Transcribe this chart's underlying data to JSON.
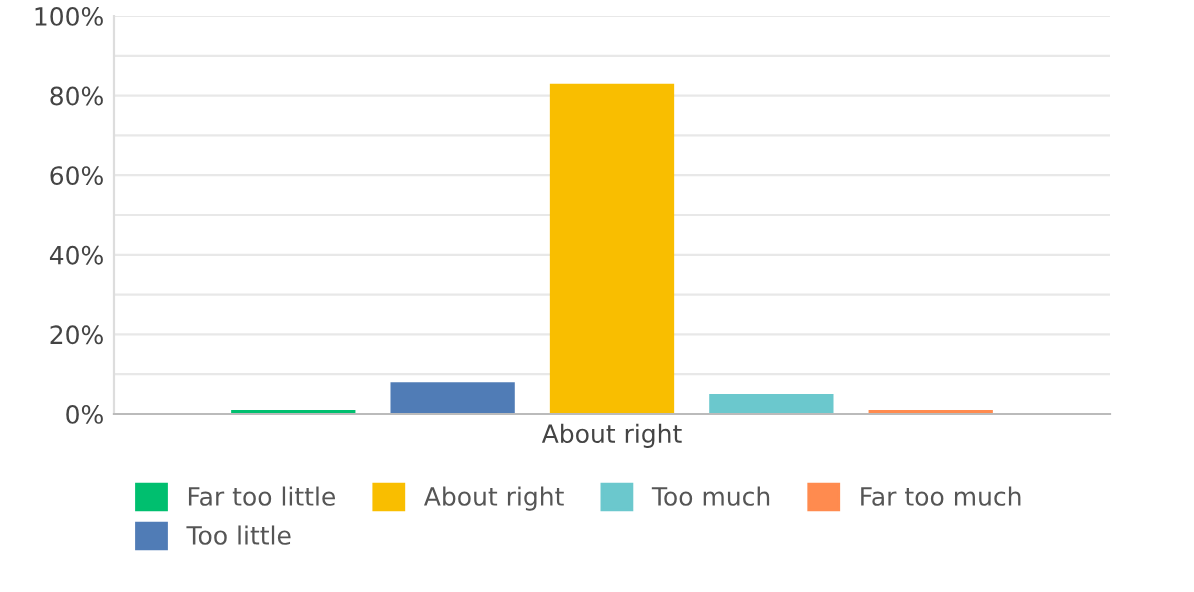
{
  "chart_data": {
    "type": "bar",
    "categories": [
      "About right"
    ],
    "series": [
      {
        "name": "Far too little",
        "color": "#00bf6f",
        "values": [
          1
        ]
      },
      {
        "name": "Too little",
        "color": "#507cb6",
        "values": [
          8
        ]
      },
      {
        "name": "About right",
        "color": "#f9be00",
        "values": [
          83
        ]
      },
      {
        "name": "Too much",
        "color": "#6bc8cd",
        "values": [
          5
        ]
      },
      {
        "name": "Far too much",
        "color": "#ff8b4f",
        "values": [
          1
        ]
      }
    ],
    "ylim": [
      0,
      100
    ],
    "yticks": [
      {
        "value": 0,
        "label": "0%"
      },
      {
        "value": 10,
        "label": null
      },
      {
        "value": 20,
        "label": "20%"
      },
      {
        "value": 30,
        "label": null
      },
      {
        "value": 40,
        "label": "40%"
      },
      {
        "value": 50,
        "label": null
      },
      {
        "value": 60,
        "label": "60%"
      },
      {
        "value": 70,
        "label": null
      },
      {
        "value": 80,
        "label": "80%"
      },
      {
        "value": 90,
        "label": null
      },
      {
        "value": 100,
        "label": "100%"
      }
    ],
    "grid": "y",
    "legend": "bottom"
  }
}
